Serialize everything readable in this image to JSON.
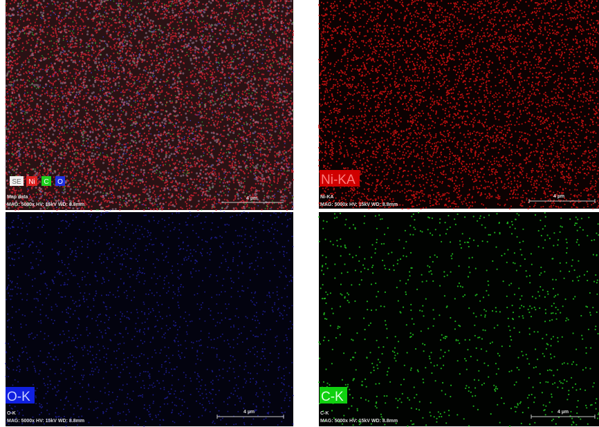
{
  "panels": [
    {
      "legend": [
        "SE",
        "Ni",
        "C",
        "O"
      ],
      "caption": "Map data",
      "info": "MAG: 5000x  HV: 15kV  WD: 8.8mm",
      "scale": "4 µm"
    },
    {
      "label": "Ni-KA",
      "caption": "Ni-KA",
      "info": "MAG: 5000x  HV: 15kV  WD: 8.8mm",
      "scale": "4 µm"
    },
    {
      "label": "O-K",
      "caption": "O-K",
      "info": "MAG: 5000x  HV: 15kV  WD: 8.8mm",
      "scale": "4 µm"
    },
    {
      "label": "C-K",
      "caption": "C-K",
      "info": "MAG: 5000x  HV: 15kV  WD: 8.8mm",
      "scale": "4 µm"
    }
  ]
}
